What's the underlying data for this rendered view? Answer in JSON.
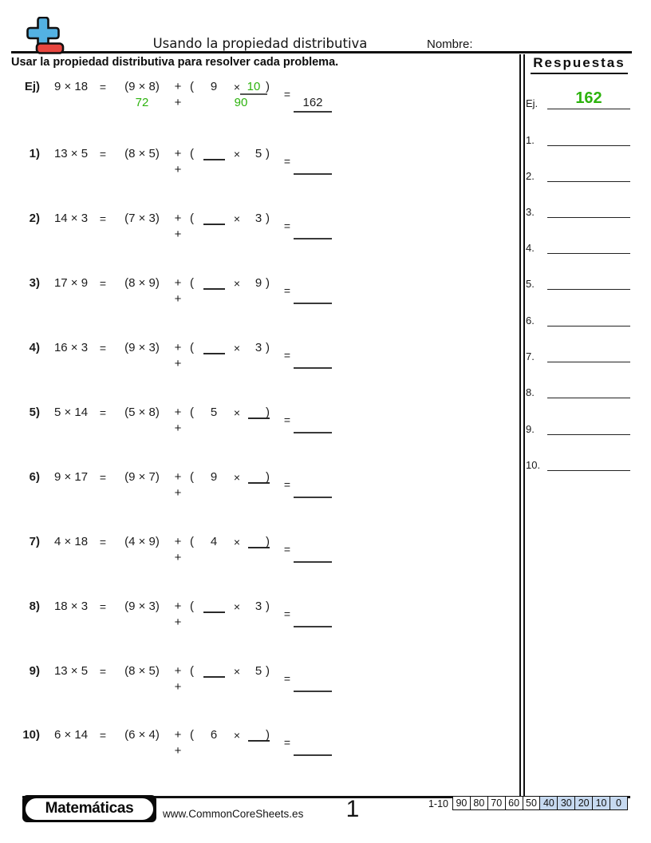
{
  "header": {
    "title": "Usando la propiedad distributiva",
    "name_label": "Nombre:",
    "instruction": "Usar la propiedad distributiva para resolver cada problema.",
    "answers_title": "Respuestas"
  },
  "symbols": {
    "eq": "=",
    "plus": "+",
    "times": "×",
    "lparen": "(",
    "rparen": ")"
  },
  "colors": {
    "answer_green": "#2db30e",
    "logo_blue": "#53b1e2",
    "logo_red": "#e8463f",
    "score_blue": "#c6d9f0"
  },
  "example": {
    "label": "Ej)",
    "expr": "9 × 18",
    "group1": "(9 × 8)",
    "slot1": "9",
    "slot2": "10",
    "product1": "72",
    "product2": "90",
    "answer": "162"
  },
  "problems": [
    {
      "num": "1)",
      "expr": "13 × 5",
      "group1": "(8 × 5)",
      "slot1": "",
      "slot2": "5"
    },
    {
      "num": "2)",
      "expr": "14 × 3",
      "group1": "(7 × 3)",
      "slot1": "",
      "slot2": "3"
    },
    {
      "num": "3)",
      "expr": "17 × 9",
      "group1": "(8 × 9)",
      "slot1": "",
      "slot2": "9"
    },
    {
      "num": "4)",
      "expr": "16 × 3",
      "group1": "(9 × 3)",
      "slot1": "",
      "slot2": "3"
    },
    {
      "num": "5)",
      "expr": "5 × 14",
      "group1": "(5 × 8)",
      "slot1": "5",
      "slot2": ""
    },
    {
      "num": "6)",
      "expr": "9 × 17",
      "group1": "(9 × 7)",
      "slot1": "9",
      "slot2": ""
    },
    {
      "num": "7)",
      "expr": "4 × 18",
      "group1": "(4 × 9)",
      "slot1": "4",
      "slot2": ""
    },
    {
      "num": "8)",
      "expr": "18 × 3",
      "group1": "(9 × 3)",
      "slot1": "",
      "slot2": "3"
    },
    {
      "num": "9)",
      "expr": "13 × 5",
      "group1": "(8 × 5)",
      "slot1": "",
      "slot2": "5"
    },
    {
      "num": "10)",
      "expr": "6 × 14",
      "group1": "(6 × 4)",
      "slot1": "6",
      "slot2": ""
    }
  ],
  "answers_column": {
    "example_label": "Ej.",
    "example_value": "162",
    "slots": [
      "1.",
      "2.",
      "3.",
      "4.",
      "5.",
      "6.",
      "7.",
      "8.",
      "9.",
      "10."
    ]
  },
  "footer": {
    "brand": "Matemáticas",
    "website": "www.CommonCoreSheets.es",
    "page_number": "1",
    "score_label": "1-10",
    "score_values": [
      "90",
      "80",
      "70",
      "60",
      "50",
      "40",
      "30",
      "20",
      "10",
      "0"
    ]
  }
}
